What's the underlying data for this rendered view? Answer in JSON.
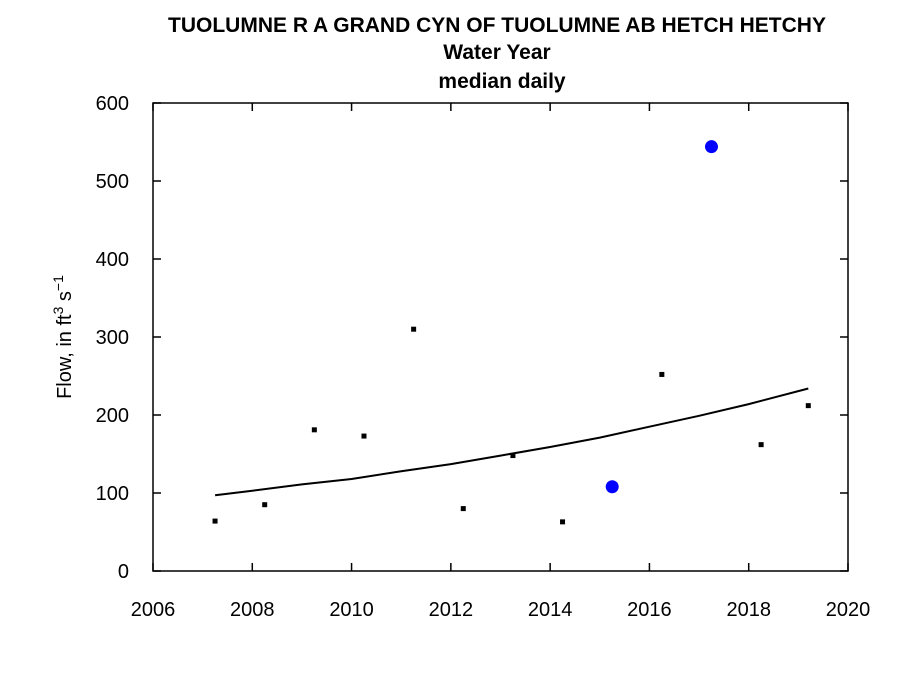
{
  "chart_data": {
    "type": "scatter",
    "title": "TUOLUMNE R A GRAND CYN OF TUOLUMNE AB HETCH HETCHY",
    "subtitle": "Water Year",
    "subtitle2": "median daily",
    "ylabel": {
      "main": "Flow, in ft",
      "exp1": "3",
      "middle": " s",
      "exp2": "−1"
    },
    "xlim": [
      2006,
      2020
    ],
    "ylim": [
      0,
      600
    ],
    "xticks": [
      2006,
      2008,
      2010,
      2012,
      2014,
      2016,
      2018,
      2020
    ],
    "yticks": [
      0,
      100,
      200,
      300,
      400,
      500,
      600
    ],
    "grid": false,
    "series": [
      {
        "marker": "small-square",
        "color": "#000000",
        "points": [
          {
            "x": 2007.25,
            "y": 64
          },
          {
            "x": 2008.25,
            "y": 85
          },
          {
            "x": 2009.25,
            "y": 181
          },
          {
            "x": 2010.25,
            "y": 173
          },
          {
            "x": 2011.25,
            "y": 310
          },
          {
            "x": 2012.25,
            "y": 80
          },
          {
            "x": 2013.25,
            "y": 148
          },
          {
            "x": 2014.25,
            "y": 63
          },
          {
            "x": 2016.25,
            "y": 252
          },
          {
            "x": 2018.25,
            "y": 162
          },
          {
            "x": 2019.2,
            "y": 212
          }
        ]
      },
      {
        "marker": "large-circle",
        "color": "#0000ff",
        "points": [
          {
            "x": 2015.25,
            "y": 108
          },
          {
            "x": 2017.25,
            "y": 544
          }
        ]
      },
      {
        "type": "line",
        "color": "#000000",
        "points": [
          {
            "x": 2007.25,
            "y": 97
          },
          {
            "x": 2008.0,
            "y": 103
          },
          {
            "x": 2009.0,
            "y": 111
          },
          {
            "x": 2010.0,
            "y": 118
          },
          {
            "x": 2011.0,
            "y": 128
          },
          {
            "x": 2012.0,
            "y": 137
          },
          {
            "x": 2013.0,
            "y": 148
          },
          {
            "x": 2014.0,
            "y": 159
          },
          {
            "x": 2015.0,
            "y": 171
          },
          {
            "x": 2016.0,
            "y": 185
          },
          {
            "x": 2017.0,
            "y": 199
          },
          {
            "x": 2018.0,
            "y": 214
          },
          {
            "x": 2019.2,
            "y": 234
          }
        ]
      }
    ]
  }
}
